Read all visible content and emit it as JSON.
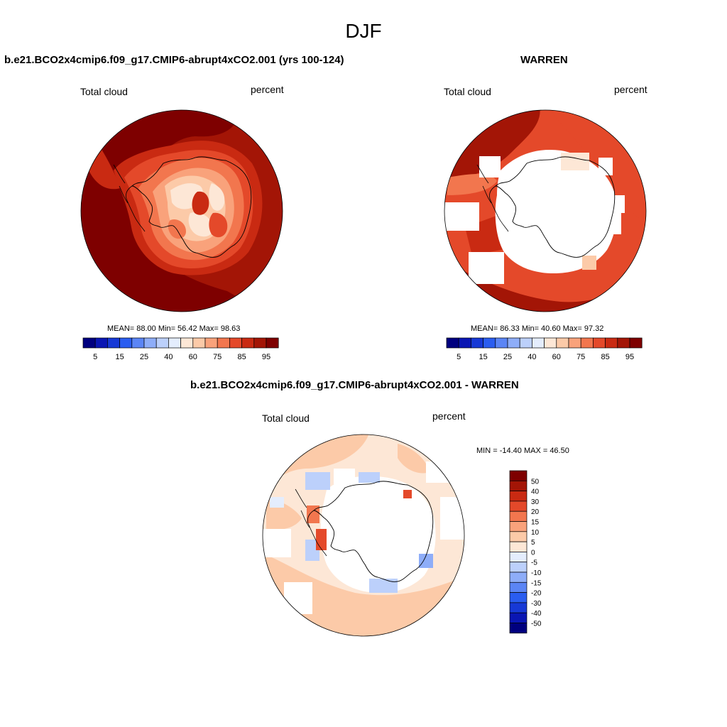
{
  "main_title": "DJF",
  "panels": [
    {
      "title": "b.e21.BCO2x4cmip6.f09_g17.CMIP6-abrupt4xCO2.001 (yrs 100-124)",
      "left_label": "Total cloud",
      "right_label": "percent",
      "stats": "MEAN=  88.00  Min=  56.42  Max=  98.63"
    },
    {
      "title": "WARREN",
      "left_label": "Total cloud",
      "right_label": "percent",
      "stats": "MEAN=  86.33  Min=  40.60  Max=  97.32"
    },
    {
      "title": "b.e21.BCO2x4cmip6.f09_g17.CMIP6-abrupt4xCO2.001 - WARREN",
      "left_label": "Total cloud",
      "right_label": "percent",
      "stats": "MIN = -14.40 MAX =  46.50"
    }
  ],
  "chart_data": [
    {
      "type": "heatmap",
      "projection": "south-polar stereographic",
      "variable": "Total cloud",
      "units": "percent",
      "mean": 88.0,
      "min": 56.42,
      "max": 98.63,
      "colorbar_levels": [
        5,
        10,
        15,
        20,
        25,
        30,
        40,
        50,
        60,
        70,
        75,
        80,
        85,
        90,
        95
      ],
      "colorbar_tick_labels": [
        "5",
        "15",
        "25",
        "40",
        "60",
        "75",
        "85",
        "95"
      ],
      "colorbar_colors": [
        "#00007f",
        "#0a16b3",
        "#1739d6",
        "#2a5df0",
        "#5b85f5",
        "#8eadf8",
        "#bcd0fb",
        "#e4edfd",
        "#fde7d6",
        "#fccaa8",
        "#f9a27b",
        "#f2764e",
        "#e4492a",
        "#c92a12",
        "#a31506",
        "#7e0000"
      ],
      "colorbar_placement": "bottom"
    },
    {
      "type": "heatmap",
      "projection": "south-polar stereographic",
      "variable": "Total cloud",
      "units": "percent",
      "mean": 86.33,
      "min": 40.6,
      "max": 97.32,
      "colorbar_levels": [
        5,
        10,
        15,
        20,
        25,
        30,
        40,
        50,
        60,
        70,
        75,
        80,
        85,
        90,
        95
      ],
      "colorbar_tick_labels": [
        "5",
        "15",
        "25",
        "40",
        "60",
        "75",
        "85",
        "95"
      ],
      "colorbar_colors": [
        "#00007f",
        "#0a16b3",
        "#1739d6",
        "#2a5df0",
        "#5b85f5",
        "#8eadf8",
        "#bcd0fb",
        "#e4edfd",
        "#fde7d6",
        "#fccaa8",
        "#f9a27b",
        "#f2764e",
        "#e4492a",
        "#c92a12",
        "#a31506",
        "#7e0000"
      ],
      "colorbar_placement": "bottom"
    },
    {
      "type": "heatmap",
      "projection": "south-polar stereographic",
      "variable": "Total cloud",
      "units": "percent",
      "min": -14.4,
      "max": 46.5,
      "colorbar_levels": [
        -50,
        -40,
        -30,
        -20,
        -15,
        -10,
        -5,
        0,
        5,
        10,
        15,
        20,
        30,
        40,
        50
      ],
      "colorbar_tick_labels": [
        "50",
        "40",
        "30",
        "20",
        "15",
        "10",
        "5",
        "0",
        "-5",
        "-10",
        "-15",
        "-20",
        "-30",
        "-40",
        "-50"
      ],
      "colorbar_colors": [
        "#7e0000",
        "#a31506",
        "#c92a12",
        "#e4492a",
        "#f2764e",
        "#f9a27b",
        "#fccaa8",
        "#fde7d6",
        "#e4edfd",
        "#bcd0fb",
        "#8eadf8",
        "#5b85f5",
        "#2a5df0",
        "#1739d6",
        "#0a16b3",
        "#00007f"
      ],
      "colorbar_placement": "right"
    }
  ]
}
